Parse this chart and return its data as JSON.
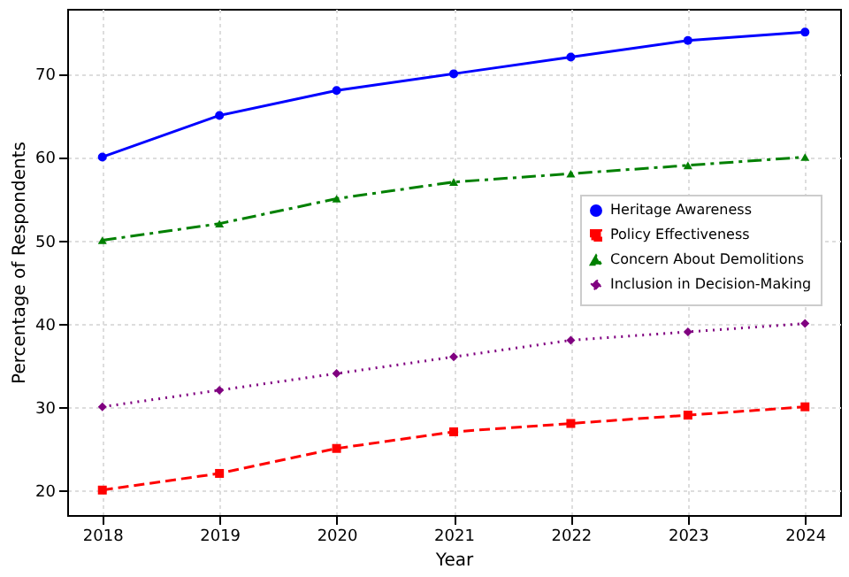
{
  "chart_data": {
    "type": "line",
    "xlabel": "Year",
    "ylabel": "Percentage of Respondents",
    "x": [
      2018,
      2019,
      2020,
      2021,
      2022,
      2023,
      2024
    ],
    "series": [
      {
        "name": "Heritage Awareness",
        "color": "#0000ff",
        "marker": "circle",
        "line_style": "solid",
        "values": [
          60,
          65,
          68,
          70,
          72,
          74,
          75
        ]
      },
      {
        "name": "Policy Effectiveness",
        "color": "#ff0000",
        "marker": "square",
        "line_style": "dashed",
        "values": [
          20,
          22,
          25,
          27,
          28,
          29,
          30
        ]
      },
      {
        "name": "Concern About Demolitions",
        "color": "#008000",
        "marker": "triangle",
        "line_style": "dashdot",
        "values": [
          50,
          52,
          55,
          57,
          58,
          59,
          60
        ]
      },
      {
        "name": "Inclusion in Decision-Making",
        "color": "#800080",
        "marker": "diamond",
        "line_style": "dotted",
        "values": [
          30,
          32,
          34,
          36,
          38,
          39,
          40
        ]
      }
    ],
    "xlim": [
      2017.7,
      2024.3
    ],
    "xticks": [
      2018,
      2019,
      2020,
      2021,
      2022,
      2023,
      2024
    ],
    "ylim": [
      17,
      77.8
    ],
    "yticks": [
      20,
      30,
      40,
      50,
      60,
      70
    ],
    "grid": true,
    "legend": "right"
  }
}
